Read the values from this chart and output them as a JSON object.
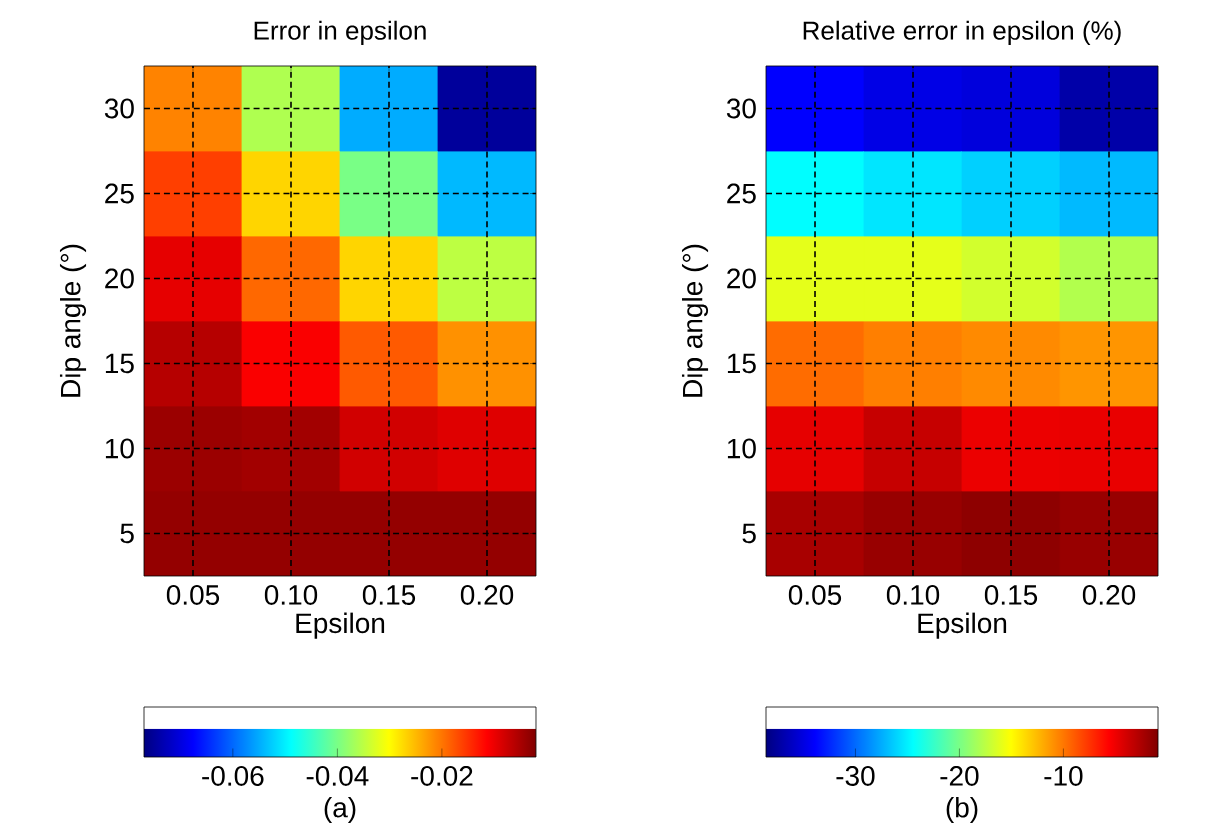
{
  "chart_data": [
    {
      "type": "heatmap",
      "title": "Error in epsilon",
      "xlabel": "Epsilon",
      "ylabel": "Dip angle (°)",
      "categories": [
        "0.05",
        "0.10",
        "0.15",
        "0.20"
      ],
      "y_categories": [
        "30",
        "25",
        "20",
        "15",
        "10",
        "5"
      ],
      "cells": [
        [
          -0.021,
          -0.036,
          -0.055,
          -0.075
        ],
        [
          -0.016,
          -0.027,
          -0.04,
          -0.054
        ],
        [
          -0.0095,
          -0.019,
          -0.027,
          -0.035
        ],
        [
          -0.006,
          -0.011,
          -0.018,
          -0.022
        ],
        [
          -0.004,
          -0.0045,
          -0.008,
          -0.009
        ],
        [
          -0.0035,
          -0.0035,
          -0.0035,
          -0.0035
        ]
      ],
      "clim": [
        -0.077,
        -0.002
      ],
      "cticks": [
        -0.06,
        -0.04,
        -0.02
      ],
      "grid": true,
      "annotations": [
        "(a)"
      ]
    },
    {
      "type": "heatmap",
      "title": "Relative error in epsilon (%)",
      "xlabel": "Epsilon",
      "ylabel": "Dip angle (°)",
      "categories": [
        "0.05",
        "0.10",
        "0.15",
        "0.20"
      ],
      "y_categories": [
        "30",
        "25",
        "20",
        "15",
        "10",
        "5"
      ],
      "cells": [
        [
          -33.9,
          -34.8,
          -35.2,
          -37.1
        ],
        [
          -24.5,
          -25.4,
          -26.2,
          -27
        ],
        [
          -16,
          -16,
          -16.7,
          -17.9
        ],
        [
          -9.6,
          -10.3,
          -10.7,
          -11.1
        ],
        [
          -4.7,
          -3.5,
          -4.9,
          -4.8
        ],
        [
          -2.4,
          -1.8,
          -1.4,
          -1.8
        ]
      ],
      "clim": [
        -38.6,
        -0.9
      ],
      "cticks": [
        -30,
        -20,
        -10
      ],
      "grid": true,
      "annotations": [
        "(b)"
      ]
    }
  ]
}
